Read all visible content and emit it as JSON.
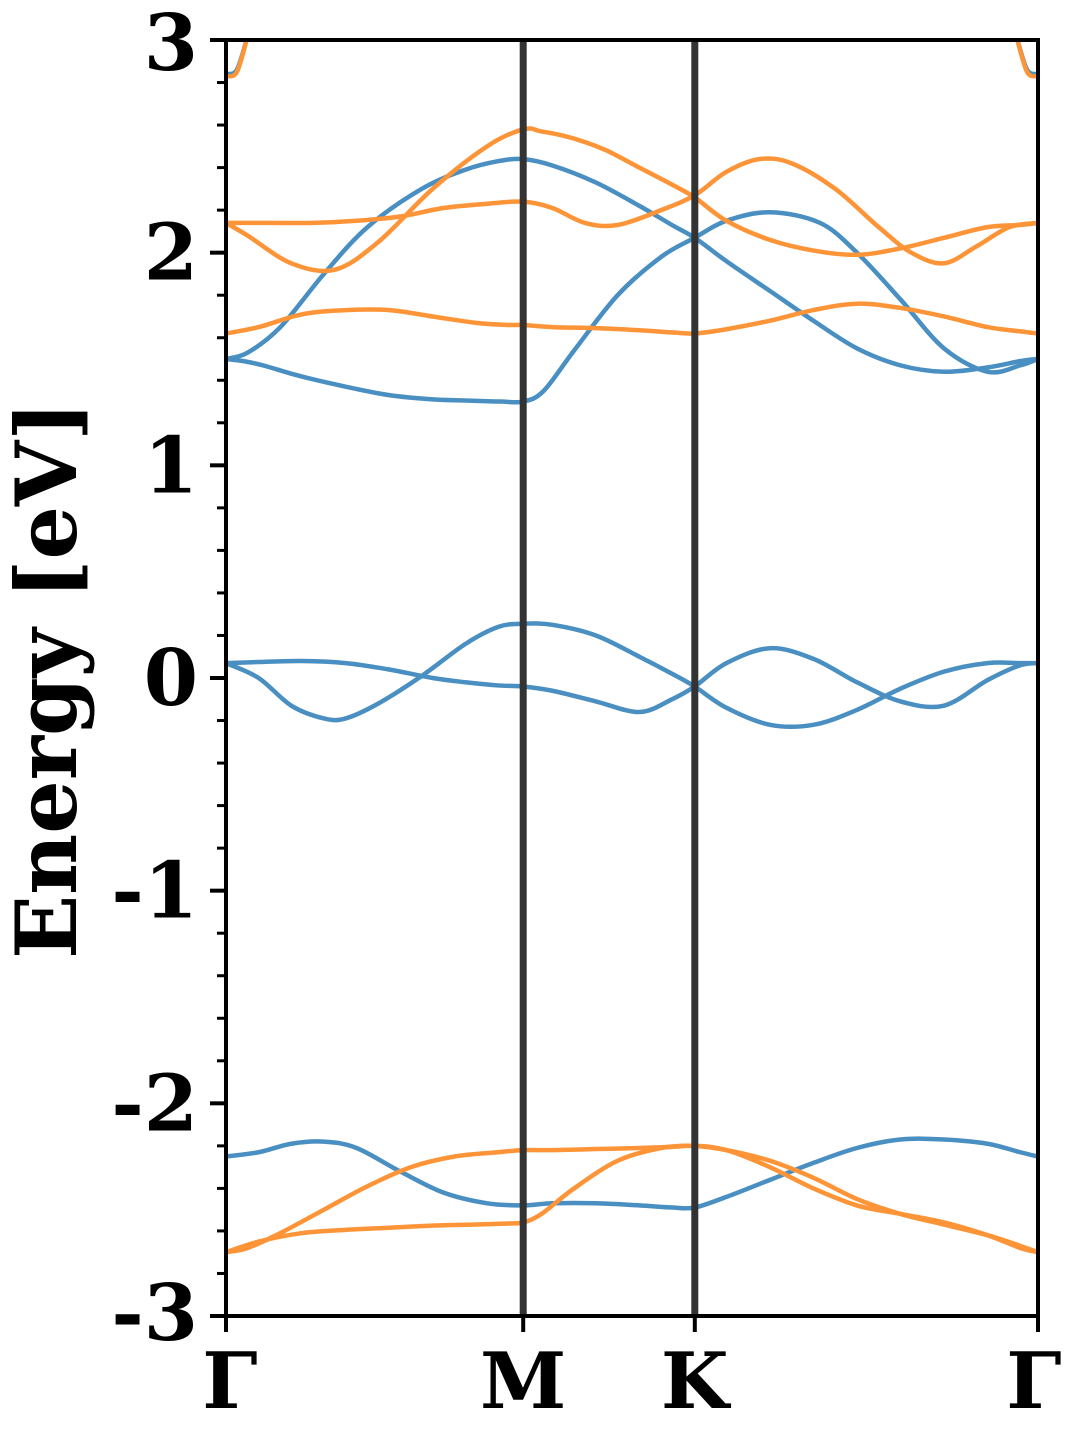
{
  "chart_data": {
    "type": "line",
    "title": "",
    "xlabel": "",
    "ylabel": "Energy [eV]",
    "ylim": [
      -3,
      3
    ],
    "xlim": [
      0,
      3.7321
    ],
    "grid": false,
    "legend": "none",
    "y_ticks": [
      {
        "value": 3,
        "label": "3"
      },
      {
        "value": 2,
        "label": "2"
      },
      {
        "value": 1,
        "label": "1"
      },
      {
        "value": 0,
        "label": "0"
      },
      {
        "value": -1,
        "label": "-1"
      },
      {
        "value": -2,
        "label": "-2"
      },
      {
        "value": -3,
        "label": "-3"
      }
    ],
    "y_minor_step": 0.2,
    "k_points": [
      {
        "label": "Γ",
        "x": 0
      },
      {
        "label": "M",
        "x": 1.366
      },
      {
        "label": "K",
        "x": 2.1547
      },
      {
        "label": "Γ",
        "x": 3.7321
      }
    ],
    "colors": {
      "blue": "#4a8fc2",
      "orange": "#fd9538",
      "divider": "#333333",
      "axis": "#000000"
    },
    "series": [
      {
        "color": "blue",
        "x": [
          0,
          0.08,
          0.17,
          0.34,
          0.55,
          0.75,
          0.95,
          1.1,
          1.26,
          1.366,
          1.46,
          1.6,
          1.8,
          2.0,
          2.154,
          2.3,
          2.5,
          2.73,
          2.9,
          3.1,
          3.3,
          3.5,
          3.65,
          3.732
        ],
        "y": [
          1.5,
          1.49,
          1.47,
          1.42,
          1.37,
          1.33,
          1.31,
          1.305,
          1.3,
          1.3,
          1.35,
          1.54,
          1.8,
          1.98,
          2.07,
          2.15,
          2.19,
          2.14,
          2.0,
          1.78,
          1.55,
          1.44,
          1.47,
          1.5
        ]
      },
      {
        "color": "blue",
        "x": [
          0,
          0.1,
          0.25,
          0.45,
          0.65,
          0.9,
          1.1,
          1.25,
          1.366,
          1.5,
          1.7,
          1.9,
          2.05,
          2.154,
          2.3,
          2.5,
          2.7,
          2.9,
          3.1,
          3.3,
          3.5,
          3.65,
          3.732
        ],
        "y": [
          1.5,
          1.53,
          1.65,
          1.9,
          2.12,
          2.3,
          2.39,
          2.43,
          2.44,
          2.41,
          2.33,
          2.22,
          2.13,
          2.07,
          1.96,
          1.82,
          1.68,
          1.55,
          1.47,
          1.44,
          1.46,
          1.49,
          1.5
        ]
      },
      {
        "color": "orange",
        "x": [
          0,
          0.15,
          0.35,
          0.55,
          0.75,
          0.95,
          1.15,
          1.3,
          1.366,
          1.5,
          1.7,
          1.9,
          2.05,
          2.154,
          2.3,
          2.5,
          2.7,
          2.9,
          3.1,
          3.3,
          3.5,
          3.65,
          3.732
        ],
        "y": [
          1.62,
          1.65,
          1.71,
          1.73,
          1.73,
          1.7,
          1.67,
          1.66,
          1.66,
          1.65,
          1.645,
          1.635,
          1.625,
          1.62,
          1.64,
          1.68,
          1.73,
          1.76,
          1.74,
          1.7,
          1.65,
          1.63,
          1.62
        ]
      },
      {
        "color": "orange",
        "x": [
          0,
          0.1,
          0.3,
          0.5,
          0.7,
          0.95,
          1.2,
          1.366,
          1.45,
          1.55,
          1.65,
          1.75,
          1.9,
          2.05,
          2.154,
          2.3,
          2.5,
          2.7,
          2.9,
          3.1,
          3.3,
          3.5,
          3.65,
          3.732
        ],
        "y": [
          2.14,
          2.08,
          1.95,
          1.92,
          2.05,
          2.3,
          2.5,
          2.58,
          2.57,
          2.55,
          2.52,
          2.48,
          2.4,
          2.32,
          2.26,
          2.15,
          2.06,
          2.01,
          1.99,
          2.02,
          2.07,
          2.12,
          2.13,
          2.14
        ]
      },
      {
        "color": "orange",
        "x": [
          0,
          0.2,
          0.4,
          0.6,
          0.8,
          1.0,
          1.2,
          1.366,
          1.5,
          1.65,
          1.8,
          2.0,
          2.154,
          2.3,
          2.45,
          2.6,
          2.8,
          3.0,
          3.15,
          3.3,
          3.45,
          3.6,
          3.732
        ],
        "y": [
          2.14,
          2.14,
          2.14,
          2.15,
          2.17,
          2.21,
          2.23,
          2.24,
          2.21,
          2.14,
          2.13,
          2.2,
          2.27,
          2.38,
          2.44,
          2.42,
          2.3,
          2.12,
          2.0,
          1.95,
          2.03,
          2.12,
          2.14
        ]
      },
      {
        "color": "blue",
        "x": [
          0,
          0.05,
          0.1
        ],
        "y": [
          2.84,
          2.86,
          3.02
        ]
      },
      {
        "color": "orange",
        "x": [
          0,
          0.05,
          0.1
        ],
        "y": [
          2.83,
          2.85,
          3.02
        ]
      },
      {
        "color": "blue",
        "x": [
          3.632,
          3.682,
          3.732
        ],
        "y": [
          3.02,
          2.86,
          2.84
        ]
      },
      {
        "color": "orange",
        "x": [
          3.632,
          3.682,
          3.732
        ],
        "y": [
          3.02,
          2.85,
          2.83
        ]
      },
      {
        "color": "blue",
        "x": [
          0,
          0.15,
          0.35,
          0.55,
          0.75,
          0.95,
          1.1,
          1.25,
          1.366,
          1.5,
          1.7,
          1.9,
          2.05,
          2.154,
          2.3,
          2.5,
          2.7,
          2.9,
          3.1,
          3.3,
          3.5,
          3.65,
          3.732
        ],
        "y": [
          0.07,
          0.075,
          0.08,
          0.07,
          0.04,
          0.0,
          -0.02,
          -0.035,
          -0.04,
          -0.06,
          -0.11,
          -0.16,
          -0.1,
          -0.04,
          0.07,
          0.14,
          0.09,
          -0.02,
          -0.11,
          -0.13,
          -0.01,
          0.06,
          0.07
        ]
      },
      {
        "color": "blue",
        "x": [
          0,
          0.15,
          0.3,
          0.45,
          0.55,
          0.7,
          0.9,
          1.1,
          1.25,
          1.366,
          1.5,
          1.7,
          1.9,
          2.05,
          2.154,
          2.3,
          2.5,
          2.7,
          2.9,
          3.1,
          3.3,
          3.5,
          3.65,
          3.732
        ],
        "y": [
          0.07,
          0.0,
          -0.13,
          -0.19,
          -0.19,
          -0.12,
          0.01,
          0.16,
          0.24,
          0.255,
          0.25,
          0.2,
          0.1,
          0.02,
          -0.04,
          -0.14,
          -0.22,
          -0.22,
          -0.15,
          -0.05,
          0.03,
          0.07,
          0.07,
          0.07
        ]
      },
      {
        "color": "blue",
        "x": [
          0,
          0.15,
          0.3,
          0.45,
          0.6,
          0.8,
          1.0,
          1.2,
          1.366,
          1.5,
          1.7,
          1.9,
          2.05,
          2.154,
          2.3,
          2.5,
          2.7,
          2.9,
          3.1,
          3.3,
          3.5,
          3.65,
          3.732
        ],
        "y": [
          -2.25,
          -2.23,
          -2.19,
          -2.18,
          -2.21,
          -2.32,
          -2.42,
          -2.47,
          -2.48,
          -2.47,
          -2.47,
          -2.48,
          -2.49,
          -2.49,
          -2.44,
          -2.36,
          -2.28,
          -2.21,
          -2.17,
          -2.17,
          -2.19,
          -2.23,
          -2.25
        ]
      },
      {
        "color": "orange",
        "x": [
          0,
          0.1,
          0.25,
          0.45,
          0.65,
          0.85,
          1.05,
          1.25,
          1.366,
          1.5,
          1.7,
          1.9,
          2.05,
          2.154,
          2.3,
          2.5,
          2.7,
          2.9,
          3.1,
          3.3,
          3.5,
          3.65,
          3.732
        ],
        "y": [
          -2.7,
          -2.68,
          -2.61,
          -2.5,
          -2.39,
          -2.3,
          -2.25,
          -2.23,
          -2.22,
          -2.22,
          -2.215,
          -2.21,
          -2.205,
          -2.2,
          -2.22,
          -2.27,
          -2.35,
          -2.45,
          -2.52,
          -2.57,
          -2.62,
          -2.67,
          -2.7
        ]
      },
      {
        "color": "orange",
        "x": [
          0,
          0.15,
          0.35,
          0.55,
          0.75,
          0.95,
          1.15,
          1.3,
          1.366,
          1.45,
          1.6,
          1.8,
          2.0,
          2.154,
          2.3,
          2.5,
          2.7,
          2.9,
          3.1,
          3.3,
          3.5,
          3.65,
          3.732
        ],
        "y": [
          -2.7,
          -2.65,
          -2.61,
          -2.595,
          -2.585,
          -2.575,
          -2.57,
          -2.565,
          -2.56,
          -2.52,
          -2.4,
          -2.27,
          -2.21,
          -2.2,
          -2.22,
          -2.3,
          -2.4,
          -2.48,
          -2.52,
          -2.56,
          -2.62,
          -2.68,
          -2.7
        ]
      }
    ]
  }
}
